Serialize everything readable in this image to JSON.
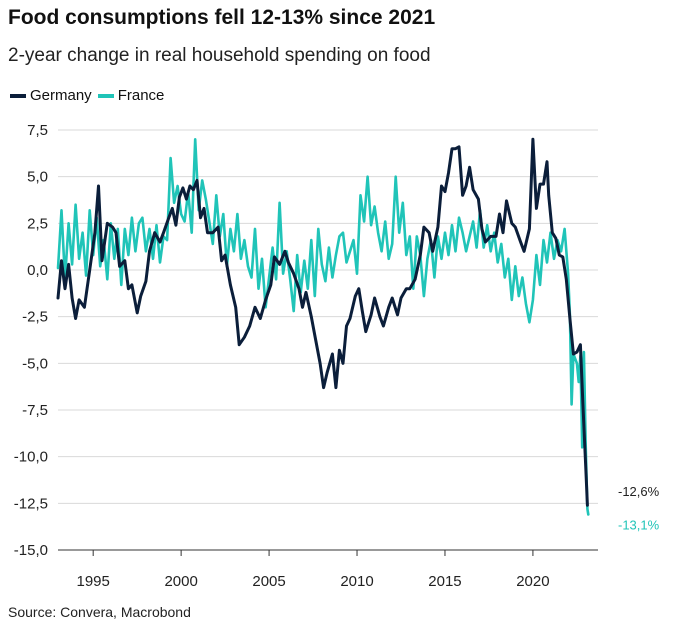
{
  "title": "Food consumptions fell 12-13% since 2021",
  "subtitle": "2-year change in real household spending on food",
  "source": "Source: Convera, Macrobond",
  "colors": {
    "germany": "#0b1e3a",
    "france": "#20c4b8",
    "grid": "#d9d9d9",
    "axis": "#333333"
  },
  "legend": [
    {
      "name": "Germany",
      "color": "#0b1e3a"
    },
    {
      "name": "France",
      "color": "#20c4b8"
    }
  ],
  "chart_data": {
    "type": "line",
    "title": "Food consumptions fell 12-13% since 2021",
    "subtitle": "2-year change in real household spending on food",
    "xlabel": "",
    "ylabel": "",
    "xlim": [
      1993,
      2023.7
    ],
    "ylim": [
      -15,
      7.5
    ],
    "xticks": [
      1995,
      2000,
      2005,
      2010,
      2015,
      2020
    ],
    "xtick_labels": [
      "1995",
      "2000",
      "2005",
      "2010",
      "2015",
      "2020"
    ],
    "yticks": [
      7.5,
      5,
      2.5,
      0,
      -2.5,
      -5,
      -7.5,
      -10,
      -12.5,
      -15
    ],
    "ytick_labels": [
      "7,5",
      "5,0",
      "2,5",
      "0,0",
      "-2,5",
      "-5,0",
      "-7,5",
      "-10,0",
      "-12,5",
      "-15,0"
    ],
    "grid": "horizontal",
    "legend_position": "top-left",
    "series": [
      {
        "name": "Germany",
        "color": "#0b1e3a",
        "end_label": "-12,6%",
        "points": [
          [
            1993.0,
            -1.5
          ],
          [
            1993.2,
            0.5
          ],
          [
            1993.4,
            -1.0
          ],
          [
            1993.6,
            0.3
          ],
          [
            1993.8,
            -1.5
          ],
          [
            1994.0,
            -2.6
          ],
          [
            1994.2,
            -1.6
          ],
          [
            1994.5,
            -2.0
          ],
          [
            1994.8,
            0.0
          ],
          [
            1995.1,
            2.0
          ],
          [
            1995.3,
            4.5
          ],
          [
            1995.5,
            0.5
          ],
          [
            1995.8,
            2.5
          ],
          [
            1996.1,
            2.3
          ],
          [
            1996.3,
            2.0
          ],
          [
            1996.5,
            0.2
          ],
          [
            1996.8,
            0.5
          ],
          [
            1997.0,
            -1.0
          ],
          [
            1997.2,
            -0.8
          ],
          [
            1997.5,
            -2.3
          ],
          [
            1997.7,
            -1.4
          ],
          [
            1998.0,
            -0.6
          ],
          [
            1998.2,
            1.0
          ],
          [
            1998.5,
            2.0
          ],
          [
            1998.8,
            1.5
          ],
          [
            1999.0,
            2.0
          ],
          [
            1999.3,
            2.8
          ],
          [
            1999.5,
            3.3
          ],
          [
            1999.7,
            2.4
          ],
          [
            1999.9,
            3.9
          ],
          [
            2000.1,
            4.4
          ],
          [
            2000.3,
            3.8
          ],
          [
            2000.5,
            4.5
          ],
          [
            2000.7,
            4.3
          ],
          [
            2000.9,
            4.8
          ],
          [
            2001.1,
            2.8
          ],
          [
            2001.3,
            3.3
          ],
          [
            2001.5,
            2.0
          ],
          [
            2001.8,
            2.0
          ],
          [
            2002.1,
            2.3
          ],
          [
            2002.3,
            0.5
          ],
          [
            2002.5,
            0.8
          ],
          [
            2002.8,
            -0.8
          ],
          [
            2003.1,
            -2.0
          ],
          [
            2003.3,
            -4.0
          ],
          [
            2003.6,
            -3.6
          ],
          [
            2003.9,
            -3.0
          ],
          [
            2004.2,
            -2.0
          ],
          [
            2004.5,
            -2.6
          ],
          [
            2004.8,
            -1.6
          ],
          [
            2005.1,
            -0.8
          ],
          [
            2005.3,
            0.7
          ],
          [
            2005.6,
            0.3
          ],
          [
            2005.9,
            1.0
          ],
          [
            2006.1,
            0.4
          ],
          [
            2006.4,
            -0.2
          ],
          [
            2006.7,
            -1.0
          ],
          [
            2006.9,
            -2.0
          ],
          [
            2007.1,
            -1.2
          ],
          [
            2007.4,
            -2.5
          ],
          [
            2007.6,
            -3.5
          ],
          [
            2007.9,
            -5.0
          ],
          [
            2008.1,
            -6.3
          ],
          [
            2008.3,
            -5.5
          ],
          [
            2008.6,
            -4.5
          ],
          [
            2008.8,
            -6.3
          ],
          [
            2009.0,
            -4.3
          ],
          [
            2009.2,
            -5.0
          ],
          [
            2009.4,
            -3.0
          ],
          [
            2009.6,
            -2.6
          ],
          [
            2009.9,
            -1.4
          ],
          [
            2010.1,
            -1.0
          ],
          [
            2010.3,
            -2.2
          ],
          [
            2010.5,
            -3.3
          ],
          [
            2010.8,
            -2.4
          ],
          [
            2011.0,
            -1.5
          ],
          [
            2011.3,
            -2.5
          ],
          [
            2011.5,
            -3.0
          ],
          [
            2011.8,
            -2.0
          ],
          [
            2012.0,
            -1.5
          ],
          [
            2012.3,
            -2.4
          ],
          [
            2012.5,
            -1.5
          ],
          [
            2012.8,
            -1.0
          ],
          [
            2013.0,
            -1.0
          ],
          [
            2013.3,
            -0.5
          ],
          [
            2013.6,
            0.8
          ],
          [
            2013.8,
            2.3
          ],
          [
            2014.1,
            2.0
          ],
          [
            2014.3,
            1.0
          ],
          [
            2014.6,
            2.3
          ],
          [
            2014.8,
            4.5
          ],
          [
            2015.0,
            4.2
          ],
          [
            2015.2,
            5.2
          ],
          [
            2015.4,
            6.5
          ],
          [
            2015.6,
            6.5
          ],
          [
            2015.8,
            6.6
          ],
          [
            2016.0,
            4.0
          ],
          [
            2016.2,
            4.5
          ],
          [
            2016.4,
            5.5
          ],
          [
            2016.6,
            4.3
          ],
          [
            2016.9,
            3.8
          ],
          [
            2017.1,
            2.2
          ],
          [
            2017.3,
            1.5
          ],
          [
            2017.6,
            1.8
          ],
          [
            2017.9,
            1.8
          ],
          [
            2018.1,
            3.0
          ],
          [
            2018.3,
            2.0
          ],
          [
            2018.5,
            3.7
          ],
          [
            2018.8,
            2.5
          ],
          [
            2019.0,
            2.3
          ],
          [
            2019.3,
            1.5
          ],
          [
            2019.5,
            1.0
          ],
          [
            2019.8,
            2.2
          ],
          [
            2020.0,
            7.0
          ],
          [
            2020.2,
            3.3
          ],
          [
            2020.4,
            4.6
          ],
          [
            2020.6,
            4.6
          ],
          [
            2020.8,
            5.8
          ],
          [
            2020.9,
            4.0
          ],
          [
            2021.1,
            2.0
          ],
          [
            2021.3,
            1.7
          ],
          [
            2021.5,
            0.8
          ],
          [
            2021.7,
            0.7
          ],
          [
            2021.9,
            -0.5
          ],
          [
            2022.1,
            -2.6
          ],
          [
            2022.3,
            -4.5
          ],
          [
            2022.5,
            -4.4
          ],
          [
            2022.7,
            -4.0
          ],
          [
            2022.85,
            -7.3
          ],
          [
            2023.0,
            -10.5
          ],
          [
            2023.1,
            -12.6
          ]
        ]
      },
      {
        "name": "France",
        "color": "#20c4b8",
        "end_label": "-13,1%",
        "points": [
          [
            1993.0,
            0.1
          ],
          [
            1993.2,
            3.2
          ],
          [
            1993.4,
            -0.5
          ],
          [
            1993.6,
            2.5
          ],
          [
            1993.8,
            0.3
          ],
          [
            1994.0,
            3.5
          ],
          [
            1994.2,
            0.6
          ],
          [
            1994.4,
            2.0
          ],
          [
            1994.6,
            -0.3
          ],
          [
            1994.8,
            3.2
          ],
          [
            1995.0,
            0.8
          ],
          [
            1995.2,
            2.8
          ],
          [
            1995.4,
            0.2
          ],
          [
            1995.6,
            1.6
          ],
          [
            1995.8,
            -0.5
          ],
          [
            1996.0,
            2.5
          ],
          [
            1996.2,
            0.6
          ],
          [
            1996.4,
            2.2
          ],
          [
            1996.6,
            -0.8
          ],
          [
            1996.8,
            2.2
          ],
          [
            1997.0,
            0.8
          ],
          [
            1997.2,
            2.8
          ],
          [
            1997.4,
            1.0
          ],
          [
            1997.6,
            2.5
          ],
          [
            1997.8,
            2.8
          ],
          [
            1998.0,
            1.0
          ],
          [
            1998.2,
            2.2
          ],
          [
            1998.4,
            0.6
          ],
          [
            1998.6,
            2.4
          ],
          [
            1998.8,
            0.4
          ],
          [
            1999.0,
            1.8
          ],
          [
            1999.2,
            1.6
          ],
          [
            1999.4,
            6.0
          ],
          [
            1999.6,
            3.6
          ],
          [
            1999.8,
            4.5
          ],
          [
            2000.0,
            3.0
          ],
          [
            2000.2,
            2.6
          ],
          [
            2000.4,
            4.2
          ],
          [
            2000.6,
            2.0
          ],
          [
            2000.8,
            7.0
          ],
          [
            2001.0,
            3.2
          ],
          [
            2001.2,
            4.8
          ],
          [
            2001.4,
            3.8
          ],
          [
            2001.6,
            2.6
          ],
          [
            2001.8,
            1.4
          ],
          [
            2002.0,
            4.0
          ],
          [
            2002.2,
            1.8
          ],
          [
            2002.4,
            3.0
          ],
          [
            2002.6,
            0.2
          ],
          [
            2002.8,
            2.2
          ],
          [
            2003.0,
            1.0
          ],
          [
            2003.2,
            3.0
          ],
          [
            2003.4,
            0.6
          ],
          [
            2003.6,
            1.6
          ],
          [
            2003.8,
            0.2
          ],
          [
            2004.0,
            -0.4
          ],
          [
            2004.2,
            2.2
          ],
          [
            2004.4,
            -1.0
          ],
          [
            2004.6,
            0.6
          ],
          [
            2004.8,
            -2.0
          ],
          [
            2005.0,
            -0.4
          ],
          [
            2005.2,
            1.2
          ],
          [
            2005.4,
            -0.5
          ],
          [
            2005.6,
            3.6
          ],
          [
            2005.8,
            -0.2
          ],
          [
            2006.0,
            1.0
          ],
          [
            2006.2,
            -0.5
          ],
          [
            2006.4,
            -2.2
          ],
          [
            2006.6,
            0.8
          ],
          [
            2006.8,
            -1.2
          ],
          [
            2007.0,
            0.5
          ],
          [
            2007.2,
            -1.0
          ],
          [
            2007.4,
            1.6
          ],
          [
            2007.6,
            -1.4
          ],
          [
            2007.8,
            2.2
          ],
          [
            2008.0,
            0.3
          ],
          [
            2008.2,
            -0.6
          ],
          [
            2008.4,
            1.2
          ],
          [
            2008.6,
            -0.4
          ],
          [
            2008.8,
            0.8
          ],
          [
            2009.0,
            1.8
          ],
          [
            2009.2,
            2.0
          ],
          [
            2009.4,
            0.4
          ],
          [
            2009.6,
            1.0
          ],
          [
            2009.8,
            1.6
          ],
          [
            2010.0,
            -0.2
          ],
          [
            2010.2,
            4.0
          ],
          [
            2010.4,
            2.6
          ],
          [
            2010.6,
            5.0
          ],
          [
            2010.8,
            2.4
          ],
          [
            2011.0,
            3.4
          ],
          [
            2011.2,
            2.0
          ],
          [
            2011.4,
            1.0
          ],
          [
            2011.6,
            2.6
          ],
          [
            2011.8,
            0.6
          ],
          [
            2012.0,
            1.4
          ],
          [
            2012.2,
            5.0
          ],
          [
            2012.4,
            2.0
          ],
          [
            2012.6,
            3.6
          ],
          [
            2012.8,
            0.8
          ],
          [
            2013.0,
            1.8
          ],
          [
            2013.2,
            -1.0
          ],
          [
            2013.4,
            1.8
          ],
          [
            2013.6,
            0.8
          ],
          [
            2013.8,
            -1.4
          ],
          [
            2014.0,
            0.6
          ],
          [
            2014.2,
            1.6
          ],
          [
            2014.4,
            -0.4
          ],
          [
            2014.6,
            1.8
          ],
          [
            2014.8,
            0.6
          ],
          [
            2015.0,
            2.0
          ],
          [
            2015.2,
            0.8
          ],
          [
            2015.4,
            2.4
          ],
          [
            2015.6,
            1.0
          ],
          [
            2015.8,
            2.8
          ],
          [
            2016.0,
            2.0
          ],
          [
            2016.2,
            1.0
          ],
          [
            2016.4,
            1.8
          ],
          [
            2016.6,
            2.6
          ],
          [
            2016.8,
            1.2
          ],
          [
            2017.0,
            3.2
          ],
          [
            2017.2,
            1.2
          ],
          [
            2017.4,
            2.4
          ],
          [
            2017.6,
            1.0
          ],
          [
            2017.8,
            2.0
          ],
          [
            2018.0,
            0.4
          ],
          [
            2018.2,
            1.4
          ],
          [
            2018.4,
            -0.4
          ],
          [
            2018.6,
            0.6
          ],
          [
            2018.8,
            -1.6
          ],
          [
            2019.0,
            0.2
          ],
          [
            2019.2,
            -1.4
          ],
          [
            2019.4,
            -0.4
          ],
          [
            2019.6,
            -1.8
          ],
          [
            2019.8,
            -2.8
          ],
          [
            2020.0,
            -1.6
          ],
          [
            2020.2,
            0.8
          ],
          [
            2020.4,
            -0.8
          ],
          [
            2020.6,
            1.6
          ],
          [
            2020.8,
            0.4
          ],
          [
            2021.0,
            2.0
          ],
          [
            2021.2,
            0.6
          ],
          [
            2021.4,
            1.6
          ],
          [
            2021.6,
            1.0
          ],
          [
            2021.8,
            2.2
          ],
          [
            2022.0,
            -0.2
          ],
          [
            2022.1,
            -2.4
          ],
          [
            2022.2,
            -7.2
          ],
          [
            2022.3,
            -4.5
          ],
          [
            2022.5,
            -5.0
          ],
          [
            2022.6,
            -6.0
          ],
          [
            2022.7,
            -4.6
          ],
          [
            2022.8,
            -9.5
          ],
          [
            2022.9,
            -4.4
          ],
          [
            2023.0,
            -9.4
          ],
          [
            2023.1,
            -12.8
          ],
          [
            2023.15,
            -13.1
          ]
        ]
      }
    ]
  }
}
